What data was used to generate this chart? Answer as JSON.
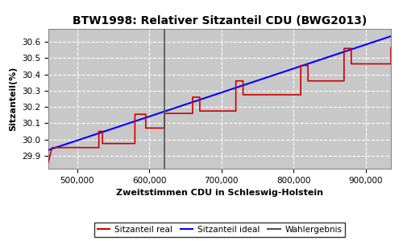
{
  "title": "BTW1998: Relativer Sitzanteil CDU (BWG2013)",
  "xlabel": "Zweitstimmen CDU in Schleswig-Holstein",
  "ylabel": "Sitzanteil(%)",
  "xlim": [
    460000,
    935000
  ],
  "ylim": [
    29.82,
    30.68
  ],
  "yticks": [
    29.9,
    30.0,
    30.1,
    30.2,
    30.3,
    30.4,
    30.5,
    30.6
  ],
  "xticks": [
    500000,
    600000,
    700000,
    800000,
    900000
  ],
  "wahlergebnis_x": 621000,
  "bg_color": "#c8c8c8",
  "fig_color": "#ffffff",
  "ideal_color": "#0000ff",
  "real_color": "#cc0000",
  "wahlergebnis_color": "#505050",
  "legend_labels": [
    "Sitzanteil real",
    "Sitzanteil ideal",
    "Wahlergebnis"
  ],
  "ideal_line": {
    "x": [
      460000,
      935000
    ],
    "y": [
      29.935,
      30.635
    ]
  },
  "real_steps": [
    [
      460000,
      29.86
    ],
    [
      465000,
      29.95
    ],
    [
      530000,
      29.95
    ],
    [
      530000,
      30.05
    ],
    [
      535000,
      30.05
    ],
    [
      535000,
      29.975
    ],
    [
      580000,
      29.975
    ],
    [
      580000,
      30.155
    ],
    [
      595000,
      30.155
    ],
    [
      595000,
      30.07
    ],
    [
      621000,
      30.07
    ],
    [
      621000,
      30.16
    ],
    [
      660000,
      30.16
    ],
    [
      660000,
      30.26
    ],
    [
      670000,
      30.26
    ],
    [
      670000,
      30.175
    ],
    [
      720000,
      30.175
    ],
    [
      720000,
      30.36
    ],
    [
      730000,
      30.36
    ],
    [
      730000,
      30.275
    ],
    [
      810000,
      30.275
    ],
    [
      810000,
      30.455
    ],
    [
      820000,
      30.455
    ],
    [
      820000,
      30.36
    ],
    [
      870000,
      30.36
    ],
    [
      870000,
      30.56
    ],
    [
      880000,
      30.56
    ],
    [
      880000,
      30.465
    ],
    [
      935000,
      30.465
    ],
    [
      935000,
      30.565
    ]
  ]
}
